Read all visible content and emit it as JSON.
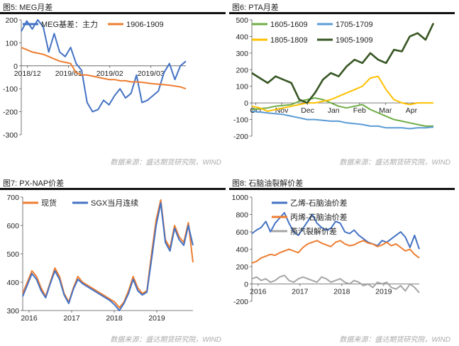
{
  "panels": [
    {
      "title": "图5: MEG月差",
      "source": "数据来源：盛达期货研究院，WIND"
    },
    {
      "title": "图6: PTA月差",
      "source": "数据来源：盛达期货研究院，WIND"
    },
    {
      "title": "图7: PX-NAP价差",
      "source": "数据来源：盛达期货研究院，WIND"
    },
    {
      "title": "图8: 石脑油裂解价差",
      "source": "数据来源：盛达期货研究院，WIND"
    }
  ],
  "chart_data": [
    {
      "type": "line",
      "ylim": [
        -300,
        200
      ],
      "yticks": [
        200,
        100,
        0,
        -100,
        -200,
        -300
      ],
      "xticks": [
        "2018/12",
        "2019/01",
        "2019/02",
        "2019/03"
      ],
      "legend_position": "top",
      "series": [
        {
          "name": "MEG基差：主力",
          "color": "#4472C4",
          "values": [
            150,
            195,
            160,
            200,
            170,
            60,
            140,
            60,
            40,
            80,
            10,
            -20,
            -160,
            -200,
            -190,
            -150,
            -170,
            -130,
            -100,
            -140,
            -120,
            -40,
            -160,
            -150,
            -130,
            -110,
            -30,
            10,
            -60,
            0,
            20
          ]
        },
        {
          "name": "1906-1909",
          "color": "#ED7D31",
          "values": [
            80,
            70,
            60,
            55,
            50,
            40,
            30,
            20,
            15,
            10,
            -30,
            -40,
            -40,
            -45,
            -50,
            -55,
            -60,
            -60,
            -65,
            -65,
            -70,
            -70,
            -72,
            -75,
            -78,
            -80,
            -82,
            -85,
            -88,
            -92,
            -100
          ]
        }
      ]
    },
    {
      "type": "line",
      "ylim": [
        -200,
        500
      ],
      "yticks": [
        500,
        400,
        300,
        200,
        100,
        0,
        -100,
        -200
      ],
      "xticks": [
        "Oct",
        "Nov",
        "Dec",
        "Jan",
        "Feb",
        "Mar",
        "Apr"
      ],
      "legend_position": "top",
      "series": [
        {
          "name": "1605-1609",
          "color": "#70AD47",
          "values": [
            -40,
            -35,
            -30,
            -20,
            -15,
            -10,
            10,
            20,
            30,
            20,
            0,
            -20,
            -30,
            -20,
            -10,
            -40,
            -60,
            -80,
            -100,
            -110,
            -120,
            -130,
            -140,
            -140
          ]
        },
        {
          "name": "1705-1709",
          "color": "#5B9BD5",
          "values": [
            -50,
            -55,
            -60,
            -65,
            -70,
            -80,
            -90,
            -100,
            -100,
            -105,
            -110,
            -110,
            -120,
            -125,
            -130,
            -140,
            -140,
            -150,
            -150,
            -150,
            -155,
            -150,
            -150,
            -145
          ]
        },
        {
          "name": "1805-1809",
          "color": "#FFC000",
          "values": [
            -20,
            -30,
            -50,
            -40,
            -30,
            -20,
            -10,
            0,
            0,
            10,
            20,
            40,
            60,
            80,
            100,
            150,
            160,
            80,
            20,
            0,
            -10,
            0,
            0,
            0
          ]
        },
        {
          "name": "1905-1909",
          "color": "#375623",
          "values": [
            180,
            150,
            120,
            160,
            140,
            120,
            20,
            0,
            60,
            140,
            180,
            160,
            220,
            260,
            240,
            300,
            260,
            240,
            320,
            310,
            400,
            420,
            380,
            480
          ]
        }
      ]
    },
    {
      "type": "line",
      "ylim": [
        300,
        700
      ],
      "yticks": [
        700,
        600,
        500,
        400,
        300
      ],
      "xticks": [
        "2016",
        "2017",
        "2018",
        "2019"
      ],
      "legend_position": "top",
      "series": [
        {
          "name": "现货",
          "color": "#ED7D31",
          "values": [
            360,
            400,
            440,
            420,
            380,
            350,
            400,
            450,
            420,
            360,
            330,
            380,
            420,
            400,
            390,
            380,
            370,
            360,
            350,
            340,
            330,
            310,
            330,
            370,
            420,
            380,
            360,
            370,
            500,
            620,
            690,
            550,
            520,
            600,
            560,
            540,
            610,
            470
          ]
        },
        {
          "name": "SGX当月连续",
          "color": "#4472C4",
          "values": [
            350,
            390,
            430,
            410,
            370,
            345,
            395,
            440,
            410,
            355,
            325,
            375,
            410,
            395,
            385,
            375,
            365,
            355,
            345,
            335,
            320,
            300,
            325,
            360,
            410,
            370,
            355,
            365,
            480,
            600,
            680,
            540,
            510,
            590,
            550,
            530,
            600,
            530
          ]
        }
      ]
    },
    {
      "type": "line",
      "ylim": [
        -200,
        1000
      ],
      "yticks": [
        1000,
        800,
        600,
        400,
        200,
        0,
        -200
      ],
      "xticks": [
        "2016",
        "2017",
        "2018",
        "2019"
      ],
      "legend_position": "top",
      "series": [
        {
          "name": "乙烯-石脑油价差",
          "color": "#4472C4",
          "values": [
            580,
            620,
            650,
            720,
            600,
            700,
            760,
            820,
            700,
            600,
            560,
            640,
            720,
            800,
            700,
            650,
            620,
            640,
            720,
            700,
            600,
            580,
            620,
            560,
            520,
            480,
            460,
            440,
            500,
            480,
            520,
            560,
            600,
            540,
            420,
            560,
            400
          ]
        },
        {
          "name": "丙烯-石脑油价差",
          "color": "#ED7D31",
          "values": [
            240,
            260,
            300,
            320,
            340,
            330,
            360,
            380,
            400,
            380,
            360,
            420,
            460,
            480,
            500,
            470,
            450,
            430,
            480,
            500,
            460,
            440,
            450,
            480,
            500,
            470,
            460,
            430,
            450,
            480,
            440,
            460,
            420,
            380,
            400,
            340,
            300
          ]
        },
        {
          "name": "燕汽裂解价差",
          "color": "#A5A5A5",
          "values": [
            60,
            80,
            40,
            60,
            20,
            40,
            80,
            100,
            40,
            20,
            60,
            80,
            60,
            40,
            20,
            80,
            60,
            20,
            40,
            60,
            20,
            0,
            40,
            20,
            -20,
            0,
            -40,
            20,
            0,
            20,
            -40,
            -60,
            -20,
            -80,
            0,
            -40,
            -100
          ]
        }
      ]
    }
  ]
}
